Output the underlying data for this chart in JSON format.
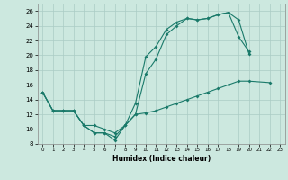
{
  "xlabel": "Humidex (Indice chaleur)",
  "bg_color": "#cce8df",
  "grid_color": "#aaccc5",
  "line_color": "#1a7a6a",
  "xlim": [
    -0.5,
    23.5
  ],
  "ylim": [
    8,
    27
  ],
  "yticks": [
    8,
    10,
    12,
    14,
    16,
    18,
    20,
    22,
    24,
    26
  ],
  "xticks": [
    0,
    1,
    2,
    3,
    4,
    5,
    6,
    7,
    8,
    9,
    10,
    11,
    12,
    13,
    14,
    15,
    16,
    17,
    18,
    19,
    20,
    21,
    22,
    23
  ],
  "series1_y": [
    15.0,
    12.5,
    12.5,
    12.5,
    10.5,
    9.5,
    9.5,
    8.5,
    10.5,
    13.5,
    19.8,
    21.2,
    23.5,
    24.5,
    25.0,
    24.8,
    25.0,
    25.5,
    25.8,
    24.8,
    20.2,
    null,
    null,
    null
  ],
  "series2_y": [
    15.0,
    12.5,
    12.5,
    12.5,
    10.5,
    10.5,
    10.0,
    9.5,
    10.5,
    12.0,
    17.5,
    19.5,
    22.8,
    24.0,
    25.0,
    24.8,
    25.0,
    25.5,
    25.8,
    22.5,
    20.5,
    null,
    null,
    null
  ],
  "series3_y": [
    15.0,
    12.5,
    12.5,
    12.5,
    10.5,
    9.5,
    9.5,
    9.0,
    10.5,
    12.0,
    12.2,
    12.5,
    13.0,
    13.5,
    14.0,
    14.5,
    15.0,
    15.5,
    16.0,
    16.5,
    16.5,
    null,
    16.3,
    null
  ]
}
